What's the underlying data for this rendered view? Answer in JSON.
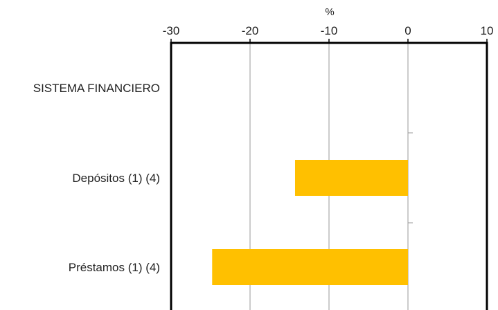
{
  "chart_data": {
    "type": "bar",
    "orientation": "horizontal",
    "unit": "%",
    "xlim": [
      -30,
      10
    ],
    "x_ticks": [
      -30,
      -20,
      -10,
      0,
      10
    ],
    "grid": true,
    "bar_color": "#FFC000",
    "categories": [
      "SISTEMA FINANCIERO",
      "Depósitos (1) (4)",
      "Préstamos (1) (4)"
    ],
    "values": [
      null,
      -14.3,
      -24.8
    ]
  }
}
